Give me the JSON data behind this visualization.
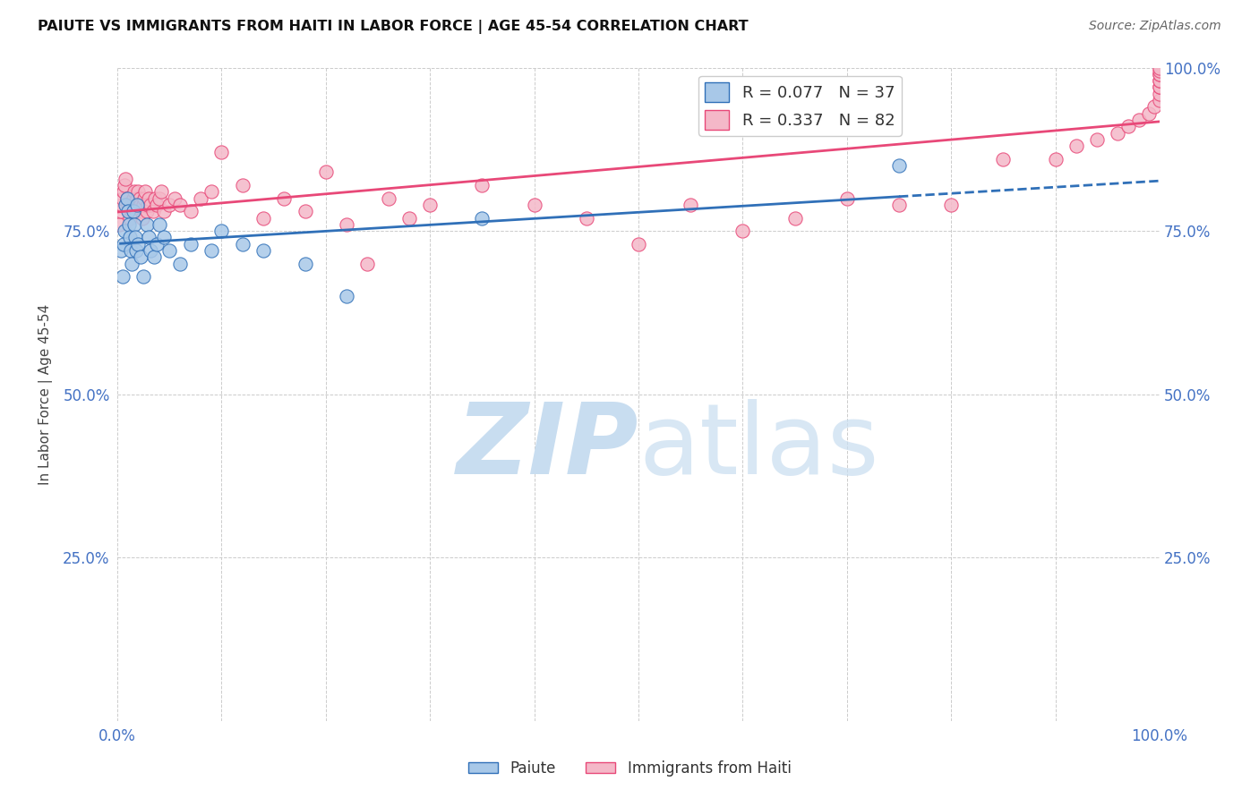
{
  "title": "PAIUTE VS IMMIGRANTS FROM HAITI IN LABOR FORCE | AGE 45-54 CORRELATION CHART",
  "source": "Source: ZipAtlas.com",
  "ylabel": "In Labor Force | Age 45-54",
  "xlim": [
    0.0,
    1.0
  ],
  "ylim": [
    0.0,
    1.0
  ],
  "legend_R1": "R = 0.077",
  "legend_N1": "N = 37",
  "legend_R2": "R = 0.337",
  "legend_N2": "N = 82",
  "paiute_color": "#a8c8e8",
  "haiti_color": "#f4b8c8",
  "trendline_paiute_color": "#3070b8",
  "trendline_haiti_color": "#e84878",
  "background_color": "#ffffff",
  "paiute_scatter_x": [
    0.003,
    0.005,
    0.006,
    0.007,
    0.008,
    0.009,
    0.01,
    0.011,
    0.012,
    0.013,
    0.014,
    0.015,
    0.016,
    0.017,
    0.018,
    0.019,
    0.02,
    0.022,
    0.025,
    0.028,
    0.03,
    0.032,
    0.035,
    0.038,
    0.04,
    0.045,
    0.05,
    0.06,
    0.07,
    0.09,
    0.1,
    0.12,
    0.14,
    0.18,
    0.22,
    0.35,
    0.75
  ],
  "paiute_scatter_y": [
    0.72,
    0.68,
    0.73,
    0.75,
    0.79,
    0.8,
    0.78,
    0.76,
    0.74,
    0.72,
    0.7,
    0.78,
    0.76,
    0.74,
    0.72,
    0.79,
    0.73,
    0.71,
    0.68,
    0.76,
    0.74,
    0.72,
    0.71,
    0.73,
    0.76,
    0.74,
    0.72,
    0.7,
    0.73,
    0.72,
    0.75,
    0.73,
    0.72,
    0.7,
    0.65,
    0.77,
    0.85
  ],
  "haiti_scatter_x": [
    0.002,
    0.003,
    0.004,
    0.005,
    0.006,
    0.007,
    0.008,
    0.009,
    0.01,
    0.011,
    0.012,
    0.013,
    0.014,
    0.015,
    0.016,
    0.017,
    0.018,
    0.019,
    0.02,
    0.021,
    0.022,
    0.023,
    0.024,
    0.025,
    0.026,
    0.027,
    0.028,
    0.029,
    0.03,
    0.032,
    0.034,
    0.036,
    0.038,
    0.04,
    0.042,
    0.045,
    0.05,
    0.055,
    0.06,
    0.07,
    0.08,
    0.09,
    0.1,
    0.12,
    0.14,
    0.16,
    0.18,
    0.2,
    0.22,
    0.24,
    0.26,
    0.28,
    0.3,
    0.35,
    0.4,
    0.45,
    0.5,
    0.55,
    0.6,
    0.65,
    0.7,
    0.75,
    0.8,
    0.85,
    0.9,
    0.92,
    0.94,
    0.96,
    0.97,
    0.98,
    0.99,
    0.995,
    1.0,
    1.0,
    1.0,
    1.0,
    1.0,
    1.0,
    1.0,
    1.0,
    1.0,
    1.0
  ],
  "haiti_scatter_y": [
    0.76,
    0.78,
    0.79,
    0.8,
    0.81,
    0.82,
    0.83,
    0.8,
    0.79,
    0.78,
    0.77,
    0.79,
    0.78,
    0.8,
    0.81,
    0.79,
    0.78,
    0.8,
    0.81,
    0.8,
    0.79,
    0.78,
    0.77,
    0.79,
    0.8,
    0.81,
    0.78,
    0.79,
    0.8,
    0.79,
    0.78,
    0.8,
    0.79,
    0.8,
    0.81,
    0.78,
    0.79,
    0.8,
    0.79,
    0.78,
    0.8,
    0.81,
    0.87,
    0.82,
    0.77,
    0.8,
    0.78,
    0.84,
    0.76,
    0.7,
    0.8,
    0.77,
    0.79,
    0.82,
    0.79,
    0.77,
    0.73,
    0.79,
    0.75,
    0.77,
    0.8,
    0.79,
    0.79,
    0.86,
    0.86,
    0.88,
    0.89,
    0.9,
    0.91,
    0.92,
    0.93,
    0.94,
    0.95,
    0.96,
    0.97,
    0.97,
    0.98,
    0.98,
    0.99,
    0.99,
    0.995,
    1.0
  ]
}
